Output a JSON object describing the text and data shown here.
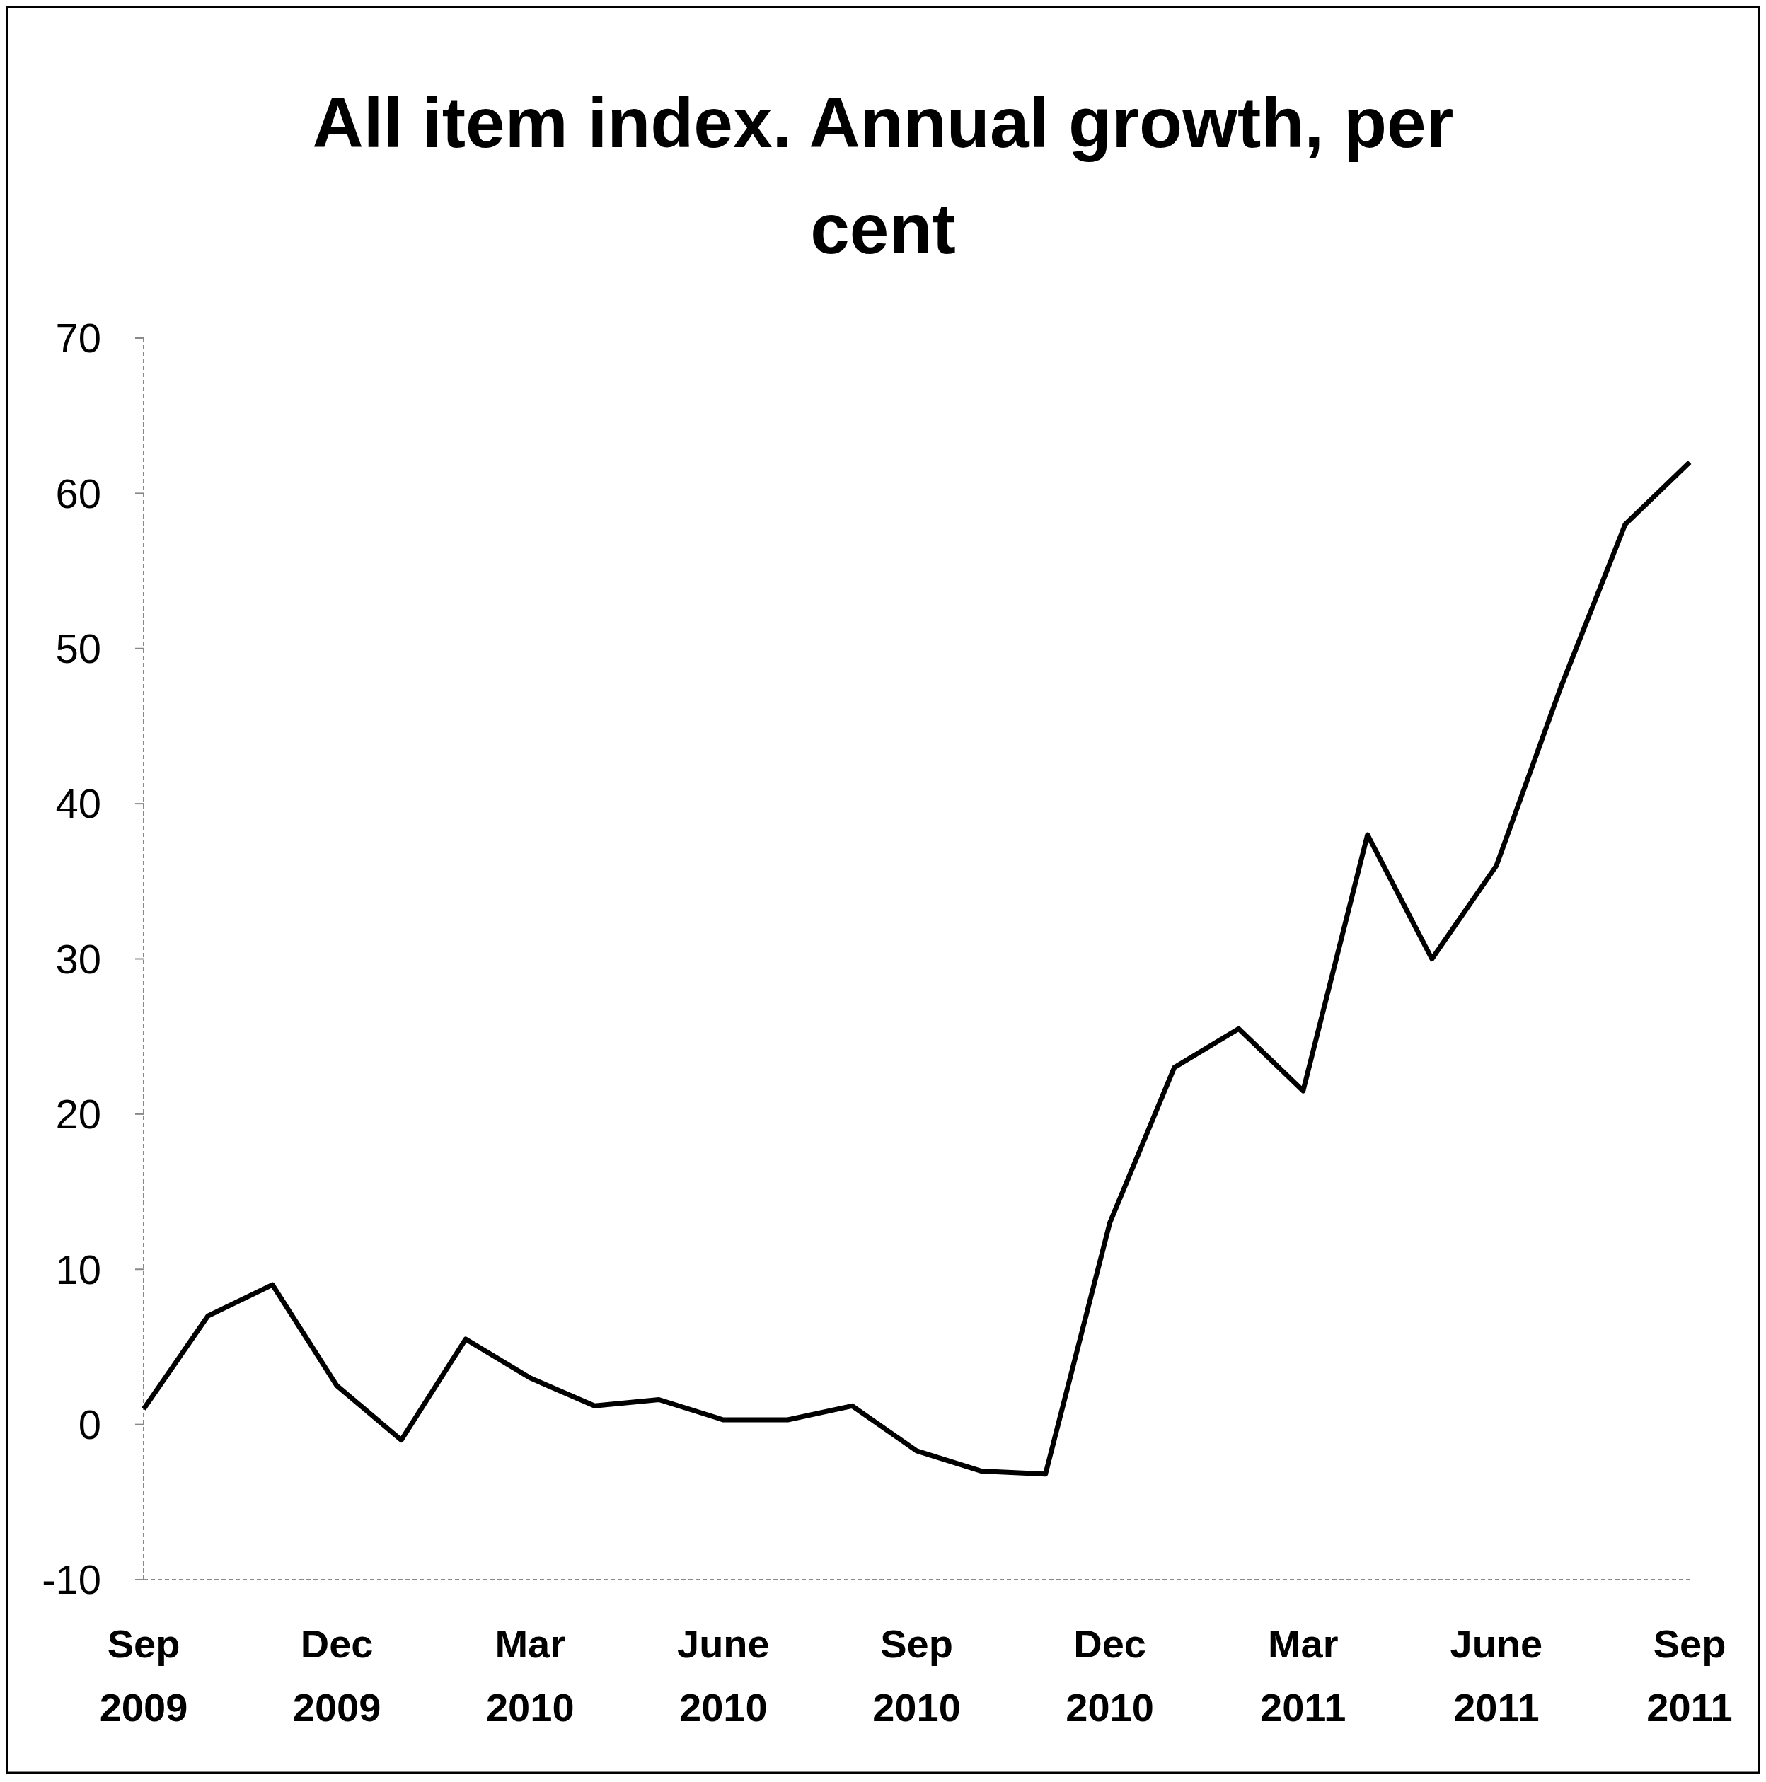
{
  "chart_data": {
    "type": "line",
    "title": "All item index. Annual growth, per cent",
    "categories": [
      "Sep 2009",
      null,
      null,
      "Dec 2009",
      null,
      null,
      "Mar 2010",
      null,
      null,
      "June 2010",
      null,
      null,
      "Sep 2010",
      null,
      null,
      "Dec 2010",
      null,
      null,
      "Mar 2011",
      null,
      null,
      "June 2011",
      null,
      null,
      "Sep 2011"
    ],
    "series": [
      {
        "color": "#000000",
        "values": [
          1,
          7,
          9,
          2.5,
          -1,
          5.5,
          3,
          1.2,
          1.6,
          0.3,
          0.3,
          1.2,
          -1.7,
          -3,
          -3.2,
          13,
          23,
          25.5,
          21.5,
          38,
          30,
          36,
          47.5,
          58,
          62
        ]
      }
    ],
    "ylim": [
      -10,
      70
    ],
    "yticks": [
      -10,
      0,
      10,
      20,
      30,
      40,
      50,
      60,
      70
    ],
    "grid": false,
    "line_style": "solid"
  }
}
